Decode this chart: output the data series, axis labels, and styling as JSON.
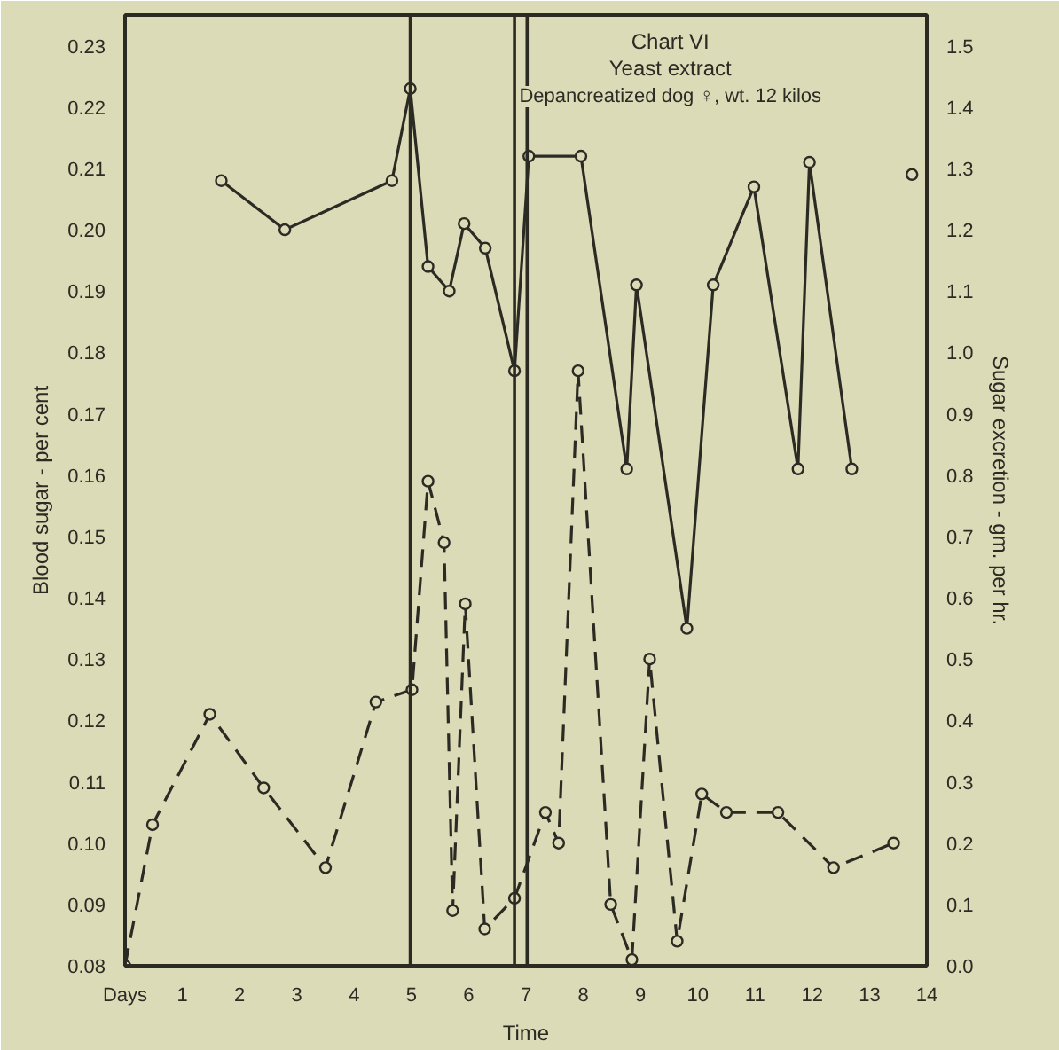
{
  "chart_data": {
    "type": "line",
    "title": "Chart VI",
    "subtitle": "Yeast extract",
    "annotations": [
      "Depancreatized dog ♀, wt. 12 kilos"
    ],
    "xlabel": "Time",
    "ylabel": "Blood sugar - per cent",
    "y2label": "Sugar excretion - gm. per hr.",
    "xlim": [
      0,
      14
    ],
    "xticks": [
      {
        "value": 0,
        "label": "Days"
      },
      1,
      2,
      3,
      4,
      5,
      6,
      7,
      8,
      9,
      10,
      11,
      12,
      13,
      14
    ],
    "ylim": [
      0.08,
      0.235
    ],
    "yticks": [
      0.08,
      0.09,
      {
        "value": 0.1,
        "label": "0.10"
      },
      0.11,
      0.12,
      0.13,
      0.14,
      0.15,
      0.16,
      0.17,
      0.18,
      0.19,
      {
        "value": 0.2,
        "label": "0.20"
      },
      0.21,
      0.22,
      0.23
    ],
    "y2lim": [
      0,
      1.55
    ],
    "y2ticks": [
      {
        "value": 0,
        "label": "0.0"
      },
      0.1,
      0.2,
      0.3,
      0.4,
      0.5,
      0.6,
      0.7,
      0.8,
      0.9,
      {
        "value": 1,
        "label": "1.0"
      },
      1.1,
      1.2,
      1.3,
      1.4,
      1.5
    ],
    "grid": false,
    "marker": "circle",
    "series": [
      {
        "color": "#2b2b24",
        "line_style": "solid",
        "x": [
          1.68,
          2.79,
          4.66,
          4.98,
          5.29,
          5.66,
          5.92,
          6.29,
          6.8,
          7.05,
          7.96,
          8.76,
          8.93,
          9.81,
          10.27,
          10.98,
          11.75,
          11.95,
          12.69,
          12.91,
          13.2,
          13.74
        ],
        "values": [
          0.208,
          0.2,
          0.208,
          0.223,
          0.194,
          0.19,
          0.201,
          0.197,
          0.177,
          0.212,
          0.212,
          0.161,
          0.191,
          0.135,
          0.191,
          0.207,
          0.161,
          0.211,
          0.161,
          null,
          null,
          0.209
        ]
      },
      {
        "color": "#2b2b24",
        "line_style": "dashed",
        "axis": "y2",
        "x": [
          0,
          0.48,
          1.48,
          2.42,
          3.5,
          4.38,
          5.01,
          5.29,
          5.57,
          5.72,
          5.94,
          6.28,
          6.8,
          7.34,
          7.57,
          7.91,
          8.48,
          8.85,
          9.16,
          9.64,
          10.07,
          10.5,
          11.4,
          12.37,
          13.42
        ],
        "values": [
          0.0,
          0.23,
          0.41,
          0.29,
          0.16,
          0.43,
          0.45,
          0.79,
          0.69,
          0.09,
          0.59,
          0.06,
          0.11,
          0.25,
          0.2,
          0.97,
          0.1,
          0.01,
          0.5,
          0.04,
          0.28,
          0.25,
          0.25,
          0.16,
          0.2
        ]
      }
    ],
    "ref_lines": [
      {
        "axis": "x",
        "value": 4.98
      },
      {
        "axis": "x",
        "value": 6.8
      },
      {
        "axis": "x",
        "value": 7.02
      }
    ]
  }
}
